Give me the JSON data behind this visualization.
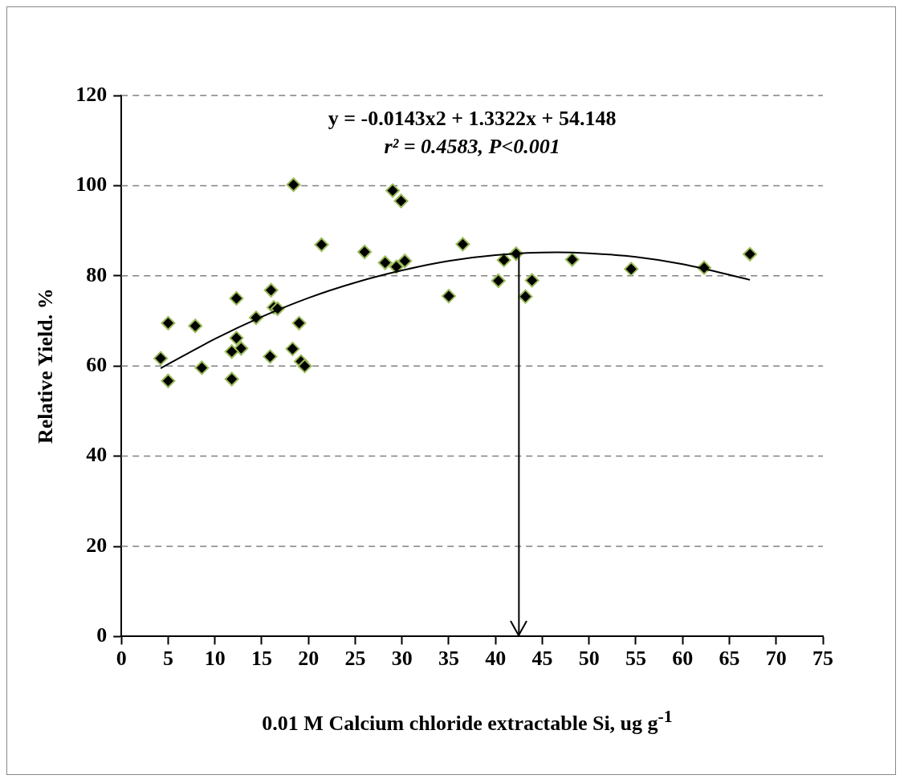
{
  "chart_data": {
    "type": "scatter",
    "xlabel": "0.01 M Calcium chloride extractable Si, ug g$^{-1}$",
    "ylabel": "Relative Yield. %",
    "annotations": [
      "y = -0.0143x2 + 1.3322x + 54.148",
      "r² = 0.4583, P<0.001"
    ],
    "xlim": [
      0,
      75
    ],
    "xticks": [
      0,
      5,
      10,
      15,
      20,
      25,
      30,
      35,
      40,
      45,
      50,
      55,
      60,
      65,
      70,
      75
    ],
    "ylim": [
      0,
      120
    ],
    "yticks": [
      0,
      20,
      40,
      60,
      80,
      100,
      120
    ],
    "grid": "y",
    "legend": false,
    "marker": "diamond",
    "ref_lines": [
      {
        "axis": "x",
        "value": 42.5,
        "color": "#000000"
      }
    ],
    "series": [
      {
        "type": "scatter",
        "color": "#000000",
        "x": [
          18.4,
          21.4,
          16.0,
          12.3,
          5.0,
          7.9,
          14.4,
          16.3,
          16.7,
          19.0,
          12.3,
          12.8,
          11.8,
          18.3,
          15.9,
          4.2,
          8.6,
          19.2,
          19.6,
          5.0,
          11.8,
          29.0,
          29.9,
          26.0,
          28.2,
          29.4,
          30.3,
          36.5,
          35.0,
          40.9,
          42.2,
          40.3,
          43.9,
          43.2,
          48.2,
          54.5,
          62.3,
          67.2
        ],
        "values": [
          100.2,
          86.9,
          76.8,
          75.0,
          69.5,
          68.9,
          70.7,
          73.0,
          72.7,
          69.5,
          66.2,
          63.9,
          63.2,
          63.8,
          62.1,
          61.7,
          59.6,
          61.0,
          60.0,
          56.7,
          57.1,
          98.9,
          96.6,
          85.3,
          82.9,
          82.0,
          83.3,
          87.0,
          75.5,
          83.5,
          84.9,
          78.9,
          79.0,
          75.4,
          83.6,
          81.5,
          81.8,
          84.8
        ]
      },
      {
        "type": "line",
        "color": "#000000",
        "marker": "none",
        "x": [
          4.2,
          10,
          15,
          20,
          25,
          30,
          35,
          40,
          46.6,
          50,
          55,
          60,
          67.2
        ],
        "values": [
          59.5,
          66.0,
          70.9,
          75.1,
          78.5,
          81.2,
          83.3,
          84.6,
          85.2,
          85.0,
          84.2,
          82.6,
          79.1
        ]
      }
    ]
  }
}
